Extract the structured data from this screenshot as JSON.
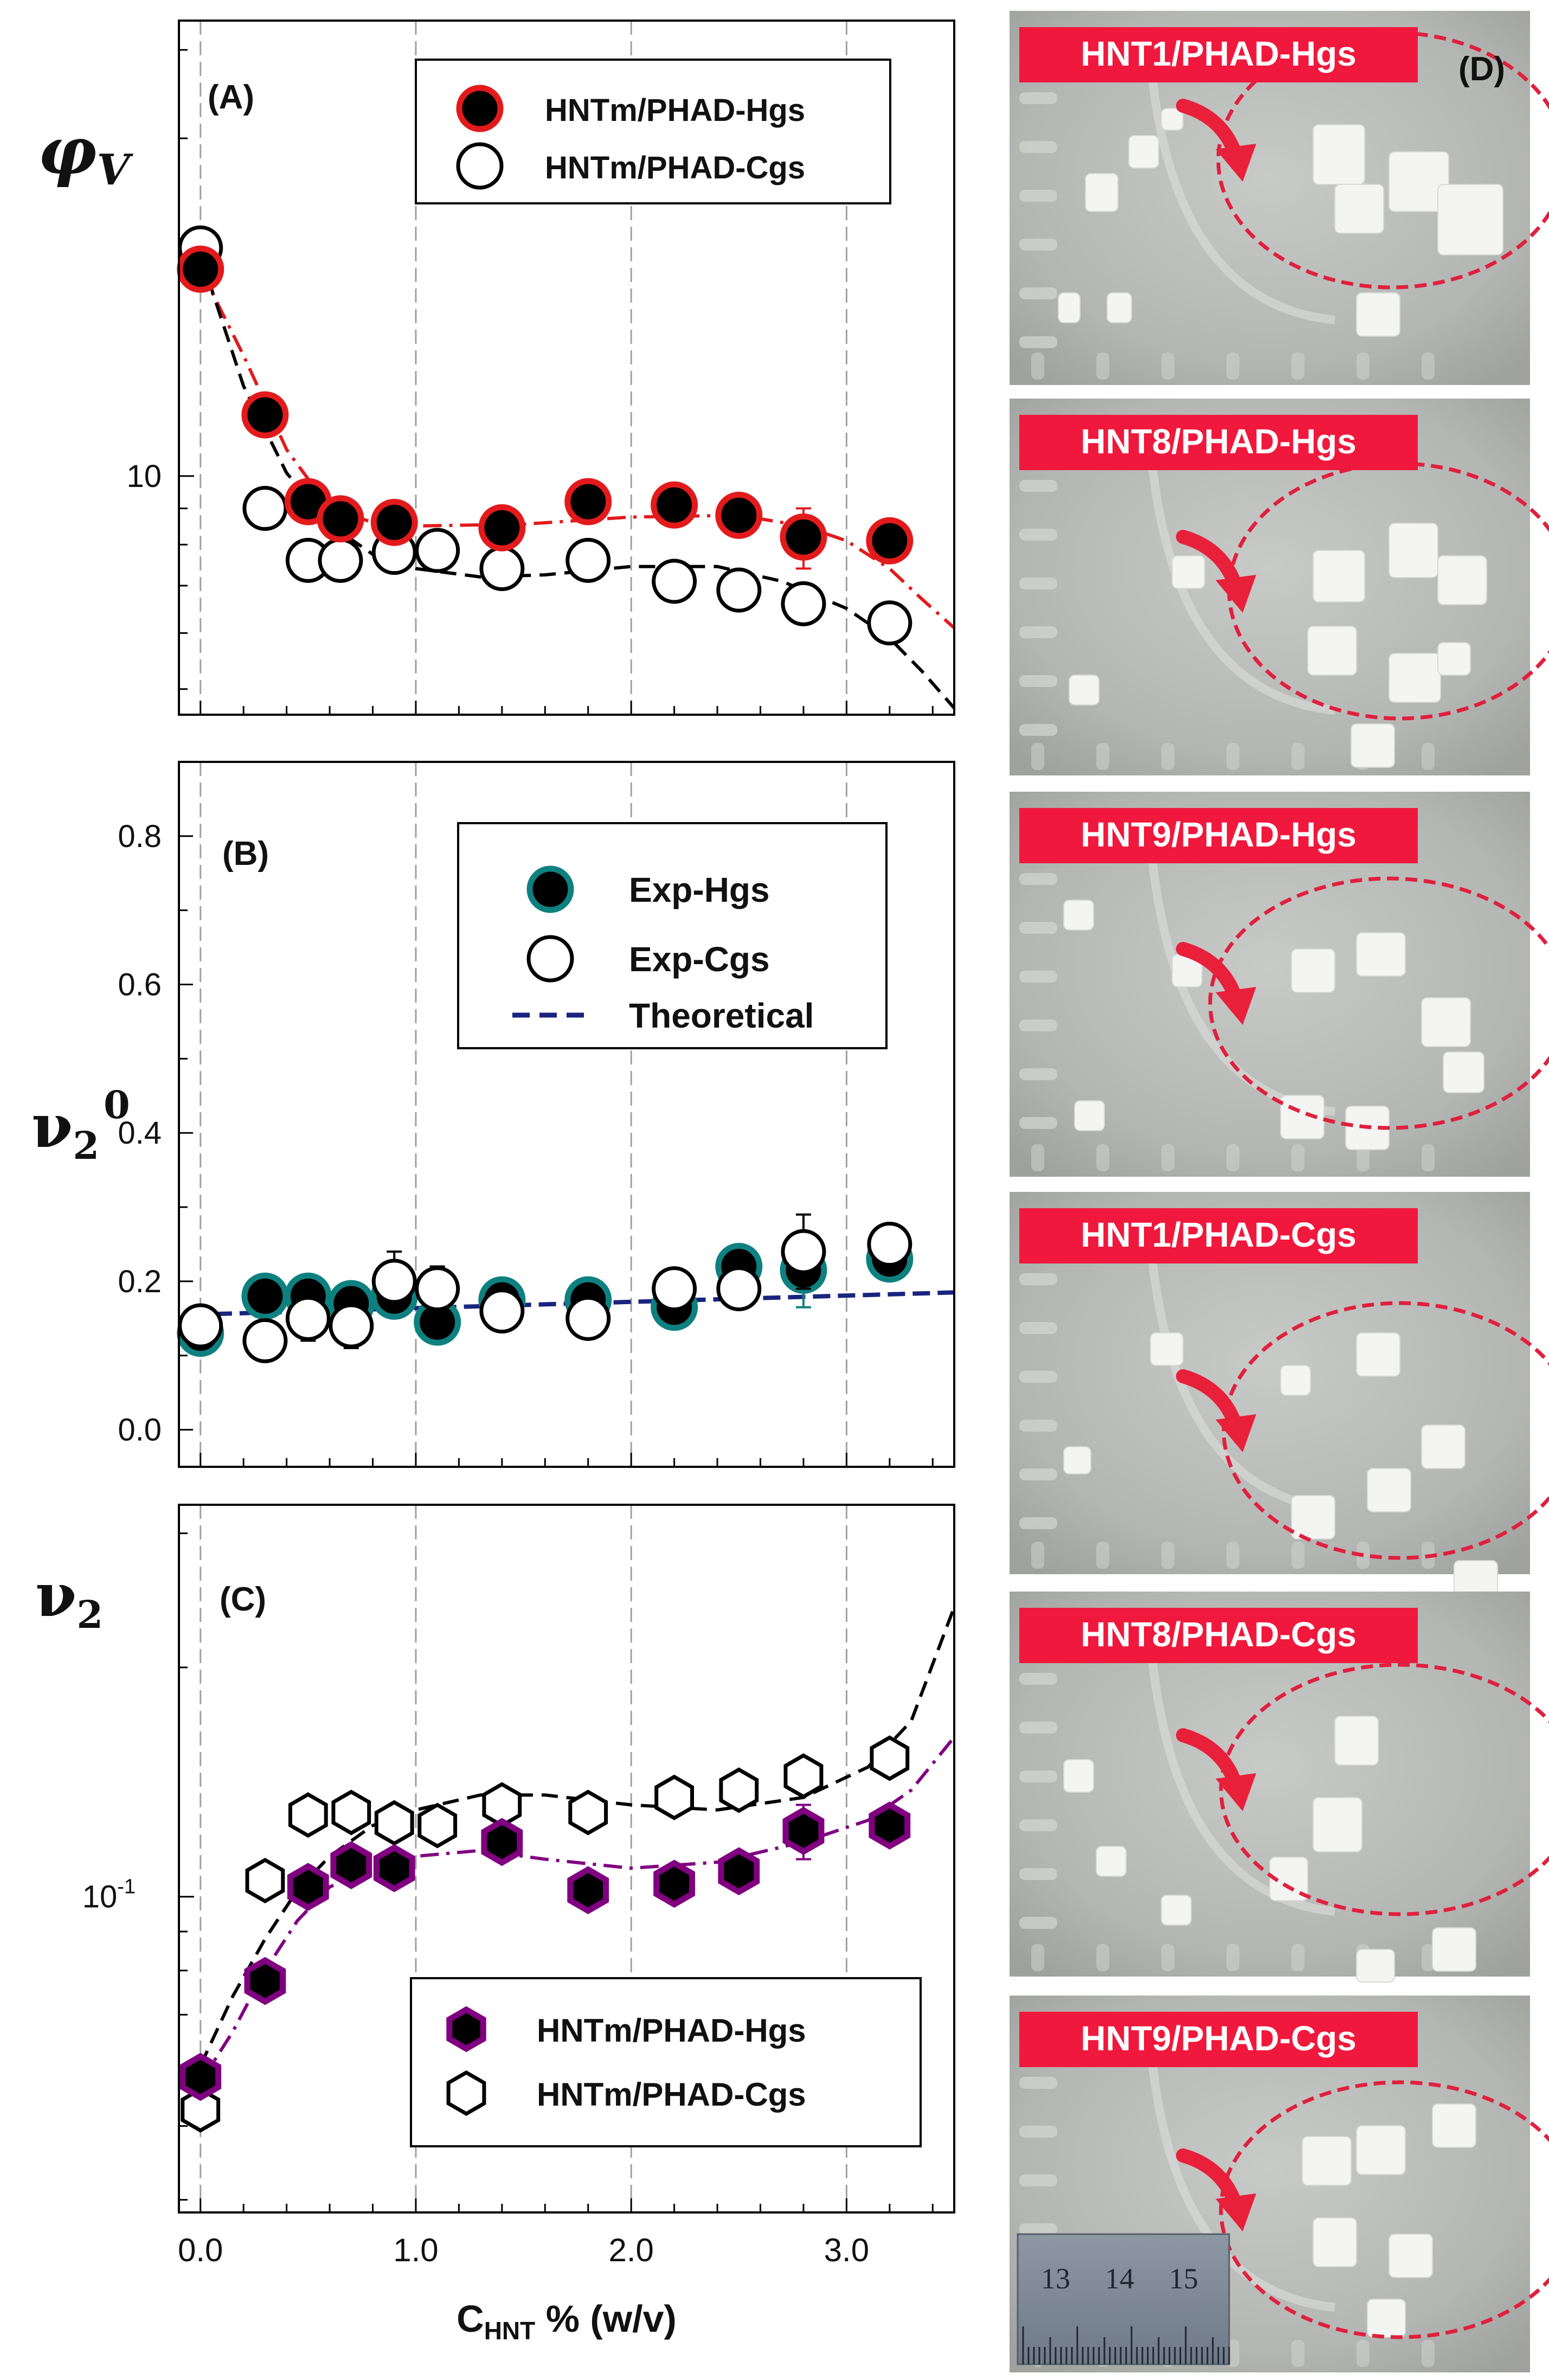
{
  "x_axis": {
    "label_main": "C",
    "label_sub": "HNT",
    "label_rest": " % (w/v)",
    "ticks": [
      "0.0",
      "1.0",
      "2.0",
      "3.0"
    ]
  },
  "chart_data": [
    {
      "panel": "(A)",
      "type": "scatter",
      "y_label": "φ",
      "y_label_sub": "V",
      "y_scale": "log",
      "ylim": [
        4.6,
        44
      ],
      "xlim": [
        -0.1,
        3.5
      ],
      "y_ticks": [
        {
          "value": 10,
          "label": "10"
        }
      ],
      "grid": "vertical dashed at x = 0, 1, 2, 3",
      "legend": "top-right",
      "series": [
        {
          "name": "HNTm/PHAD-Hgs",
          "marker": "filled circle, red outline",
          "color": "#e31a1c",
          "fit": "red dash-dot",
          "points": [
            [
              0.0,
              19.6
            ],
            [
              0.3,
              12.2
            ],
            [
              0.5,
              9.2
            ],
            [
              0.65,
              8.7
            ],
            [
              0.9,
              8.6
            ],
            [
              1.4,
              8.45
            ],
            [
              1.8,
              9.2
            ],
            [
              2.2,
              9.1
            ],
            [
              2.5,
              8.8
            ],
            [
              2.8,
              8.2
            ],
            [
              3.2,
              8.1
            ]
          ],
          "errors": [
            0,
            0,
            0,
            0,
            0,
            0,
            0.6,
            0.35,
            0,
            0.8,
            0
          ],
          "fit_curve": [
            [
              0.0,
              19.6
            ],
            [
              0.2,
              14.8
            ],
            [
              0.4,
              10.9
            ],
            [
              0.6,
              9.0
            ],
            [
              0.8,
              8.6
            ],
            [
              1.0,
              8.5
            ],
            [
              1.5,
              8.55
            ],
            [
              2.0,
              8.75
            ],
            [
              2.5,
              8.8
            ],
            [
              2.8,
              8.5
            ],
            [
              3.0,
              8.1
            ],
            [
              3.2,
              7.4
            ],
            [
              3.35,
              6.7
            ],
            [
              3.5,
              6.1
            ]
          ]
        },
        {
          "name": "HNTm/PHAD-Cgs",
          "marker": "open circle, black",
          "color": "#000000",
          "fit": "black dashed",
          "points": [
            [
              0.0,
              21.0
            ],
            [
              0.3,
              9.0
            ],
            [
              0.5,
              7.6
            ],
            [
              0.65,
              7.6
            ],
            [
              0.9,
              7.8
            ],
            [
              1.1,
              7.85
            ],
            [
              1.4,
              7.4
            ],
            [
              1.8,
              7.6
            ],
            [
              2.2,
              7.1
            ],
            [
              2.5,
              6.9
            ],
            [
              2.8,
              6.6
            ],
            [
              3.2,
              6.2
            ]
          ],
          "errors": [
            0,
            0,
            0,
            0,
            0,
            0,
            0,
            0,
            0,
            0,
            0.4,
            0
          ],
          "fit_curve": [
            [
              0.0,
              20.5
            ],
            [
              0.2,
              13.4
            ],
            [
              0.4,
              10.1
            ],
            [
              0.6,
              8.55
            ],
            [
              0.8,
              7.75
            ],
            [
              1.0,
              7.4
            ],
            [
              1.3,
              7.2
            ],
            [
              1.6,
              7.25
            ],
            [
              2.0,
              7.45
            ],
            [
              2.4,
              7.45
            ],
            [
              2.7,
              7.1
            ],
            [
              3.0,
              6.5
            ],
            [
              3.2,
              5.9
            ],
            [
              3.35,
              5.3
            ],
            [
              3.5,
              4.7
            ]
          ]
        }
      ]
    },
    {
      "panel": "(B)",
      "type": "scatter",
      "y_label": "ν",
      "y_label_sub": "2",
      "y_label_sup": "0",
      "y_scale": "linear",
      "ylim": [
        -0.05,
        0.9
      ],
      "xlim": [
        -0.1,
        3.5
      ],
      "y_ticks": [
        {
          "value": 0.0,
          "label": "0.0"
        },
        {
          "value": 0.2,
          "label": "0.2"
        },
        {
          "value": 0.4,
          "label": "0.4"
        },
        {
          "value": 0.6,
          "label": "0.6"
        },
        {
          "value": 0.8,
          "label": "0.8"
        }
      ],
      "grid": "vertical dashed at x = 0, 1, 2, 3",
      "legend": "top-right",
      "series": [
        {
          "name": "Exp-Hgs",
          "marker": "filled circle, teal outline",
          "color": "#0f8080",
          "points": [
            [
              0.0,
              0.13
            ],
            [
              0.3,
              0.18
            ],
            [
              0.5,
              0.18
            ],
            [
              0.7,
              0.17
            ],
            [
              0.9,
              0.18
            ],
            [
              1.1,
              0.145
            ],
            [
              1.4,
              0.175
            ],
            [
              1.8,
              0.175
            ],
            [
              2.2,
              0.165
            ],
            [
              2.5,
              0.22
            ],
            [
              2.8,
              0.215
            ],
            [
              3.2,
              0.23
            ]
          ],
          "errors": [
            0,
            0,
            0,
            0,
            0,
            0,
            0,
            0,
            0,
            0,
            0.05,
            0
          ]
        },
        {
          "name": "Exp-Cgs",
          "marker": "open circle, black",
          "color": "#000000",
          "points": [
            [
              0.0,
              0.14
            ],
            [
              0.3,
              0.12
            ],
            [
              0.5,
              0.15
            ],
            [
              0.7,
              0.14
            ],
            [
              0.9,
              0.2
            ],
            [
              1.1,
              0.19
            ],
            [
              1.4,
              0.16
            ],
            [
              1.8,
              0.15
            ],
            [
              2.2,
              0.19
            ],
            [
              2.5,
              0.19
            ],
            [
              2.8,
              0.24
            ],
            [
              3.2,
              0.25
            ]
          ],
          "errors": [
            0,
            0,
            0.03,
            0.03,
            0.04,
            0.03,
            0,
            0,
            0,
            0,
            0.05,
            0
          ]
        },
        {
          "name": "Theoretical",
          "marker": "navy dashed line",
          "color": "#1a237e",
          "line": [
            [
              -0.05,
              0.155
            ],
            [
              3.5,
              0.185
            ]
          ]
        }
      ]
    },
    {
      "panel": "(C)",
      "type": "scatter",
      "y_label": "ν",
      "y_label_sub": "2",
      "y_scale": "log",
      "ylim": [
        0.0385,
        0.327
      ],
      "xlim": [
        -0.1,
        3.5
      ],
      "y_ticks": [
        {
          "value": 0.1,
          "label": "10",
          "exp": "-1"
        }
      ],
      "grid": "vertical dashed at x = 0, 1, 2, 3",
      "legend": "bottom-right",
      "series": [
        {
          "name": "HNTm/PHAD-Hgs",
          "marker": "filled hexagon, purple outline",
          "color": "#800080",
          "fit": "purple dash-dot",
          "points": [
            [
              0.0,
              0.058
            ],
            [
              0.3,
              0.0775
            ],
            [
              0.5,
              0.103
            ],
            [
              0.7,
              0.11
            ],
            [
              0.9,
              0.109
            ],
            [
              1.4,
              0.118
            ],
            [
              1.8,
              0.102
            ],
            [
              2.2,
              0.104
            ],
            [
              2.5,
              0.108
            ],
            [
              2.8,
              0.122
            ],
            [
              3.2,
              0.124
            ]
          ],
          "errors": [
            0,
            0,
            0,
            0,
            0,
            0,
            0,
            0,
            0,
            0.01,
            0
          ],
          "fit_curve": [
            [
              0.0,
              0.057
            ],
            [
              0.15,
              0.0665
            ],
            [
              0.3,
              0.08
            ],
            [
              0.45,
              0.093
            ],
            [
              0.6,
              0.103
            ],
            [
              0.8,
              0.109
            ],
            [
              1.0,
              0.113
            ],
            [
              1.3,
              0.115
            ],
            [
              1.6,
              0.112
            ],
            [
              2.0,
              0.109
            ],
            [
              2.4,
              0.111
            ],
            [
              2.8,
              0.118
            ],
            [
              3.1,
              0.126
            ],
            [
              3.3,
              0.138
            ],
            [
              3.5,
              0.162
            ]
          ]
        },
        {
          "name": "HNTm/PHAD-Cgs",
          "marker": "open hexagon, black",
          "color": "#000000",
          "fit": "black dashed",
          "points": [
            [
              0.0,
              0.0525
            ],
            [
              0.3,
              0.105
            ],
            [
              0.5,
              0.128
            ],
            [
              0.7,
              0.129
            ],
            [
              0.9,
              0.125
            ],
            [
              1.1,
              0.124
            ],
            [
              1.4,
              0.132
            ],
            [
              1.8,
              0.129
            ],
            [
              2.2,
              0.135
            ],
            [
              2.5,
              0.138
            ],
            [
              2.8,
              0.144
            ],
            [
              3.2,
              0.152
            ]
          ],
          "errors": [
            0,
            0,
            0,
            0,
            0,
            0,
            0,
            0,
            0,
            0,
            0,
            0
          ],
          "fit_curve": [
            [
              0.0,
              0.06
            ],
            [
              0.15,
              0.074
            ],
            [
              0.3,
              0.088
            ],
            [
              0.45,
              0.102
            ],
            [
              0.6,
              0.113
            ],
            [
              0.8,
              0.124
            ],
            [
              1.0,
              0.13
            ],
            [
              1.3,
              0.136
            ],
            [
              1.6,
              0.136
            ],
            [
              2.0,
              0.132
            ],
            [
              2.4,
              0.13
            ],
            [
              2.8,
              0.135
            ],
            [
              3.1,
              0.148
            ],
            [
              3.3,
              0.17
            ],
            [
              3.5,
              0.24
            ]
          ]
        }
      ]
    }
  ],
  "photos": {
    "panel": "(D)",
    "tiles": [
      {
        "caption": "HNT1/PHAD-Hgs"
      },
      {
        "caption": "HNT8/PHAD-Hgs"
      },
      {
        "caption": "HNT9/PHAD-Hgs"
      },
      {
        "caption": "HNT1/PHAD-Cgs"
      },
      {
        "caption": "HNT8/PHAD-Cgs"
      },
      {
        "caption": "HNT9/PHAD-Cgs"
      }
    ],
    "ruler_numbers": [
      "13",
      "14",
      "15"
    ]
  },
  "colors": {
    "caption_bg": "#f0183c",
    "circle": "#e0203e",
    "arrow": "#e8203a",
    "photo_bg": "#b7b9b6"
  }
}
